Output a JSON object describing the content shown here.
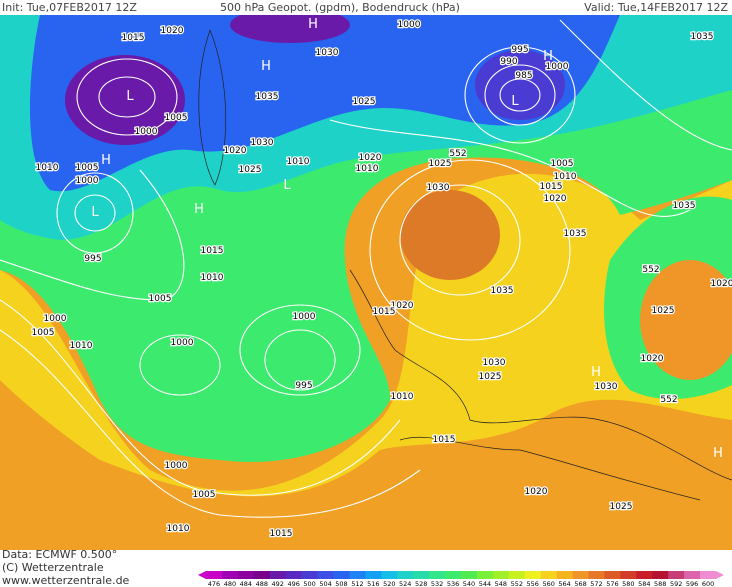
{
  "header": {
    "init": "Init: Tue,07FEB2017 12Z",
    "title": "500 hPa Geopot. (gpdm), Bodendruck (hPa)",
    "valid": "Valid: Tue,14FEB2017 12Z"
  },
  "footer": {
    "data": "Data: ECMWF  0.500°",
    "copyright": "(C) Wetterzentrale",
    "url": "www.wetterzentrale.de"
  },
  "isobar_labels": [
    "1015",
    "1020",
    "1030",
    "1000",
    "995",
    "990",
    "985",
    "1000",
    "1035",
    "1005",
    "1000",
    "1035",
    "1030",
    "1020",
    "1025",
    "1010",
    "1025",
    "1020",
    "1010",
    "1025",
    "552",
    "1005",
    "1010",
    "1015",
    "1020",
    "1030",
    "1035",
    "1035",
    "1010",
    "1005",
    "1000",
    "995",
    "1015",
    "1010",
    "1005",
    "1000",
    "1000",
    "1005",
    "1010",
    "1000",
    "995",
    "1020",
    "1015",
    "1035",
    "1030",
    "1025",
    "1030",
    "1010",
    "1015",
    "1000",
    "1005",
    "1010",
    "1015",
    "1020",
    "1025",
    "1025",
    "1020",
    "552",
    "552",
    "1020"
  ],
  "pressure_centers": [
    "L",
    "L",
    "L",
    "L",
    "H",
    "H",
    "H",
    "H",
    "H",
    "H",
    "H"
  ],
  "legend": {
    "levels": [
      476,
      480,
      484,
      488,
      492,
      496,
      500,
      504,
      508,
      512,
      516,
      520,
      524,
      528,
      532,
      536,
      540,
      544,
      548,
      552,
      556,
      560,
      564,
      568,
      572,
      576,
      580,
      584,
      588,
      592,
      596,
      600
    ],
    "colors": [
      "#c800c8",
      "#a000b4",
      "#8c00a0",
      "#78008c",
      "#6a1aa8",
      "#5a28c0",
      "#4a3cd2",
      "#3c50e6",
      "#2864f0",
      "#1e82f5",
      "#14a0f5",
      "#14bee6",
      "#1ed2c8",
      "#28dcaa",
      "#32e68c",
      "#3ceb6e",
      "#50eb50",
      "#78f03c",
      "#a0f028",
      "#c8f01e",
      "#f0f01e",
      "#f5d21e",
      "#f5b41e",
      "#f09628",
      "#e67828",
      "#dc5a28",
      "#d23c28",
      "#c81e28",
      "#b41432",
      "#c83c78",
      "#dc64aa",
      "#f08cd2"
    ]
  }
}
